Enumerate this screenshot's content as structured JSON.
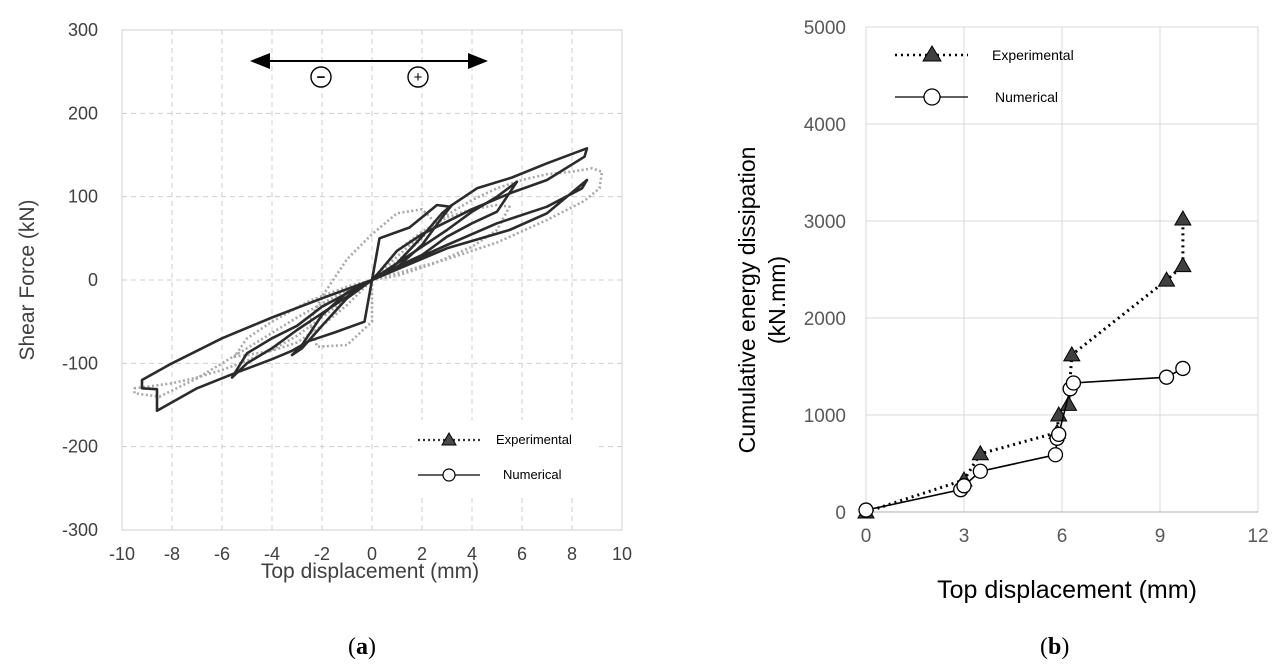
{
  "chart_data": [
    {
      "type": "line",
      "panel_label": {
        "open": "(",
        "letter": "a",
        "close": ")"
      },
      "xlabel": "Top displacement (mm)",
      "ylabel": "Shear Force (kN)",
      "xlim": [
        -10,
        10
      ],
      "ylim": [
        -300,
        300
      ],
      "x_ticks": [
        -10,
        -8,
        -6,
        -4,
        -2,
        0,
        2,
        4,
        6,
        8,
        10
      ],
      "y_ticks": [
        -300,
        -200,
        -100,
        0,
        100,
        200,
        300
      ],
      "grid": "dashed",
      "legend_position": "bottom-right",
      "direction_signs": [
        "−",
        "+"
      ],
      "series": [
        {
          "name": "Experimental",
          "style": "dotted",
          "color": "#a8a8a8",
          "marker": "filled-triangle",
          "loops": [
            [
              [
                0,
                0
              ],
              [
                1,
                28
              ],
              [
                2,
                55
              ],
              [
                3,
                78
              ],
              [
                4,
                96
              ],
              [
                5,
                110
              ],
              [
                6,
                120
              ],
              [
                7,
                127
              ],
              [
                8,
                130
              ],
              [
                8.8,
                134
              ],
              [
                9.2,
                130
              ],
              [
                9.1,
                110
              ],
              [
                8.5,
                95
              ],
              [
                7,
                72
              ],
              [
                5,
                45
              ],
              [
                3,
                25
              ],
              [
                1,
                8
              ],
              [
                0,
                0
              ],
              [
                -1,
                -22
              ],
              [
                -2,
                -45
              ],
              [
                -3,
                -67
              ],
              [
                -4,
                -84
              ],
              [
                -5,
                -97
              ],
              [
                -6,
                -108
              ],
              [
                -7,
                -117
              ],
              [
                -8,
                -124
              ],
              [
                -9,
                -128
              ],
              [
                -9.5,
                -130
              ],
              [
                -9.5,
                -136
              ],
              [
                -8.5,
                -140
              ],
              [
                -7,
                -118
              ],
              [
                -5,
                -82
              ],
              [
                -3,
                -45
              ],
              [
                -1,
                -12
              ],
              [
                0,
                0
              ]
            ],
            [
              [
                0,
                0
              ],
              [
                1,
                22
              ],
              [
                2,
                50
              ],
              [
                2.5,
                70
              ],
              [
                2,
                85
              ],
              [
                1,
                80
              ],
              [
                0,
                55
              ],
              [
                -1,
                25
              ],
              [
                -2,
                -20
              ],
              [
                -2.5,
                -50
              ],
              [
                -2.2,
                -80
              ],
              [
                -1,
                -78
              ],
              [
                0,
                -50
              ],
              [
                0,
                0
              ]
            ],
            [
              [
                0,
                0
              ],
              [
                1,
                35
              ],
              [
                2,
                58
              ],
              [
                3,
                75
              ],
              [
                4,
                85
              ],
              [
                5,
                90
              ],
              [
                5.5,
                88
              ],
              [
                5,
                60
              ],
              [
                4,
                40
              ],
              [
                2.5,
                20
              ],
              [
                1,
                5
              ],
              [
                0,
                0
              ],
              [
                -1,
                -30
              ],
              [
                -2,
                -55
              ],
              [
                -3,
                -75
              ],
              [
                -4,
                -85
              ],
              [
                -5,
                -90
              ],
              [
                -5.5,
                -92
              ],
              [
                -5,
                -70
              ],
              [
                -4,
                -50
              ],
              [
                -2.5,
                -25
              ],
              [
                -1,
                -8
              ],
              [
                0,
                0
              ]
            ]
          ],
          "points": [],
          "_note_removed": true
        },
        {
          "name": "Numerical",
          "style": "solid",
          "color": "#2b2b2b",
          "marker": "open-circle",
          "loops": [
            [
              [
                0,
                0
              ],
              [
                0.3,
                50
              ],
              [
                1.5,
                63
              ],
              [
                2.6,
                90
              ],
              [
                3.1,
                88
              ],
              [
                4.2,
                110
              ],
              [
                5.6,
                123
              ],
              [
                7,
                140
              ],
              [
                8.6,
                158
              ],
              [
                8.5,
                148
              ],
              [
                7,
                120
              ],
              [
                5.6,
                105
              ],
              [
                4,
                85
              ],
              [
                2,
                55
              ],
              [
                1,
                35
              ],
              [
                0.3,
                10
              ],
              [
                0,
                0
              ],
              [
                -0.3,
                -50
              ],
              [
                -1.5,
                -63
              ],
              [
                -2.5,
                -73
              ],
              [
                -3.2,
                -85
              ],
              [
                -4,
                -95
              ],
              [
                -5.5,
                -112
              ],
              [
                -7,
                -130
              ],
              [
                -8.6,
                -157
              ],
              [
                -8.6,
                -131
              ],
              [
                -9.2,
                -130
              ],
              [
                -9.2,
                -120
              ],
              [
                -8,
                -100
              ],
              [
                -6,
                -70
              ],
              [
                -4,
                -45
              ],
              [
                -2,
                -22
              ],
              [
                0,
                0
              ]
            ],
            [
              [
                0,
                0
              ],
              [
                1,
                16
              ],
              [
                2,
                30
              ],
              [
                3,
                52
              ],
              [
                4,
                68
              ],
              [
                5,
                82
              ],
              [
                5.8,
                118
              ],
              [
                5,
                100
              ],
              [
                4,
                82
              ],
              [
                3,
                60
              ],
              [
                2,
                40
              ],
              [
                1,
                20
              ],
              [
                0,
                0
              ],
              [
                -1,
                -16
              ],
              [
                -2,
                -32
              ],
              [
                -3,
                -55
              ],
              [
                -4,
                -70
              ],
              [
                -5,
                -88
              ],
              [
                -5.6,
                -117
              ],
              [
                -5,
                -100
              ],
              [
                -4,
                -82
              ],
              [
                -3,
                -60
              ],
              [
                -2,
                -40
              ],
              [
                -1,
                -20
              ],
              [
                0,
                0
              ]
            ],
            [
              [
                0,
                0
              ],
              [
                1,
                15
              ],
              [
                2,
                42
              ],
              [
                2.8,
                75
              ],
              [
                3.2,
                90
              ],
              [
                2.8,
                80
              ],
              [
                2,
                52
              ],
              [
                1,
                20
              ],
              [
                0,
                0
              ],
              [
                -1,
                -15
              ],
              [
                -2,
                -42
              ],
              [
                -2.8,
                -78
              ],
              [
                -3.2,
                -90
              ],
              [
                -2.8,
                -82
              ],
              [
                -2,
                -55
              ],
              [
                -1,
                -22
              ],
              [
                0,
                0
              ]
            ],
            [
              [
                0,
                0
              ],
              [
                3,
                38
              ],
              [
                5.5,
                60
              ],
              [
                7,
                80
              ],
              [
                8.6,
                120
              ],
              [
                8.4,
                110
              ],
              [
                7,
                88
              ],
              [
                5,
                68
              ],
              [
                3,
                42
              ],
              [
                1,
                15
              ],
              [
                0,
                0
              ]
            ]
          ]
        }
      ]
    },
    {
      "type": "line",
      "panel_label": {
        "open": "(",
        "letter": "b",
        "close": ")"
      },
      "xlabel": "Top displacement (mm)",
      "ylabel": [
        "Cumulative energy dissipation",
        "(kN.mm)"
      ],
      "xlim": [
        0,
        12
      ],
      "ylim": [
        0,
        5000
      ],
      "x_ticks": [
        0,
        3,
        6,
        9,
        12
      ],
      "y_ticks": [
        0,
        1000,
        2000,
        3000,
        4000,
        5000
      ],
      "grid": "solid",
      "legend_position": "top-left",
      "series": [
        {
          "name": "Experimental",
          "style": "dotted",
          "color": "#333333",
          "marker": "filled-triangle",
          "x": [
            0,
            3.0,
            3.5,
            5.85,
            5.9,
            6.2,
            6.3,
            9.2,
            9.7,
            9.7
          ],
          "y": [
            0,
            330,
            600,
            820,
            1000,
            1110,
            1620,
            2390,
            2540,
            3020
          ]
        },
        {
          "name": "Numerical",
          "style": "solid",
          "color": "#333333",
          "marker": "open-circle",
          "x": [
            0,
            2.9,
            3.0,
            3.5,
            5.8,
            5.85,
            5.9,
            6.25,
            6.35,
            9.2,
            9.7
          ],
          "y": [
            20,
            230,
            270,
            420,
            590,
            760,
            800,
            1270,
            1330,
            1390,
            1480
          ]
        }
      ]
    }
  ]
}
